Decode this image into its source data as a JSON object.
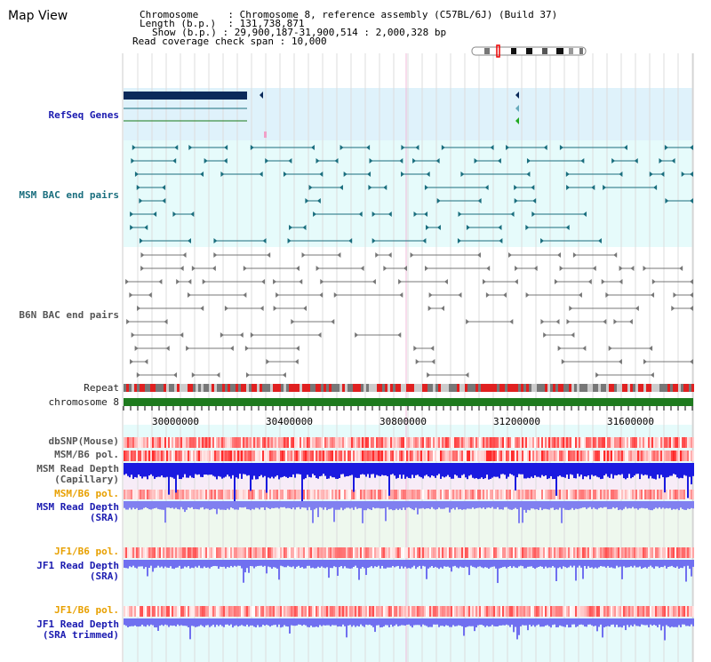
{
  "title": "Map View",
  "header": {
    "chromosome_key": "Chromosome",
    "chromosome_val": "Chromosome 8, reference assembly (C57BL/6J) (Build 37)",
    "length_key": "Length (b.p.)",
    "length_val": "131,738,871",
    "show_key": "Show (b.p.)",
    "show_val": "29,900,187-31,900,514 : 2,000,328 bp",
    "coverage_key": "Read coverage check span",
    "coverage_val": "10,000"
  },
  "tracks": {
    "refseq": "RefSeq Genes",
    "msm_bac": "MSM BAC end pairs",
    "b6n_bac": "B6N BAC end pairs",
    "repeat": "Repeat",
    "chromosome": "chromosome 8",
    "dbsnp": "dbSNP(Mouse)",
    "msm_b6_pol_1": "MSM/B6 pol.",
    "msm_depth_cap": "MSM Read Depth\n(Capillary)",
    "msm_b6_pol_2": "MSM/B6 pol.",
    "msm_depth_sra": "MSM Read Depth\n(SRA)",
    "jf1_b6_pol_1": "JF1/B6 pol.",
    "jf1_depth_sra": "JF1 Read Depth\n(SRA)",
    "jf1_b6_pol_2": "JF1/B6 pol.",
    "jf1_depth_trim": "JF1 Read Depth\n(SRA trimmed)"
  },
  "axis_ticks": [
    "30000000",
    "30400000",
    "30800000",
    "31200000",
    "31600000"
  ],
  "colors": {
    "refseq_bg": "#dff2fb",
    "bac_bg": "#e6fbfb",
    "chrom": "#1e7a1e",
    "snp": "#ff5050",
    "depth": "#2020e0"
  }
}
